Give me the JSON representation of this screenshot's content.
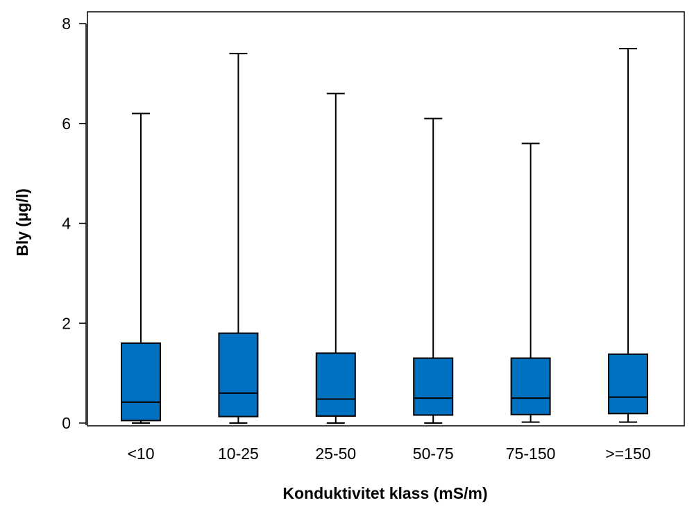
{
  "chart_data": {
    "type": "box",
    "title": "",
    "xlabel": "Konduktivitet klass (mS/m)",
    "ylabel": "Bly (µg/l)",
    "ylim": [
      0,
      8
    ],
    "yticks": [
      0,
      2,
      4,
      6,
      8
    ],
    "box_color": "#0070C0",
    "categories": [
      "<10",
      "10-25",
      "25-50",
      "50-75",
      "75-150",
      ">=150"
    ],
    "series": [
      {
        "category": "<10",
        "min": 0.0,
        "q1": 0.05,
        "median": 0.42,
        "q3": 1.6,
        "max": 6.2
      },
      {
        "category": "10-25",
        "min": 0.0,
        "q1": 0.13,
        "median": 0.6,
        "q3": 1.8,
        "max": 7.4
      },
      {
        "category": "25-50",
        "min": 0.0,
        "q1": 0.14,
        "median": 0.48,
        "q3": 1.4,
        "max": 6.6
      },
      {
        "category": "50-75",
        "min": 0.0,
        "q1": 0.16,
        "median": 0.5,
        "q3": 1.3,
        "max": 6.1
      },
      {
        "category": "75-150",
        "min": 0.02,
        "q1": 0.17,
        "median": 0.5,
        "q3": 1.3,
        "max": 5.6
      },
      {
        "category": ">=150",
        "min": 0.02,
        "q1": 0.19,
        "median": 0.52,
        "q3": 1.38,
        "max": 7.5
      }
    ]
  }
}
